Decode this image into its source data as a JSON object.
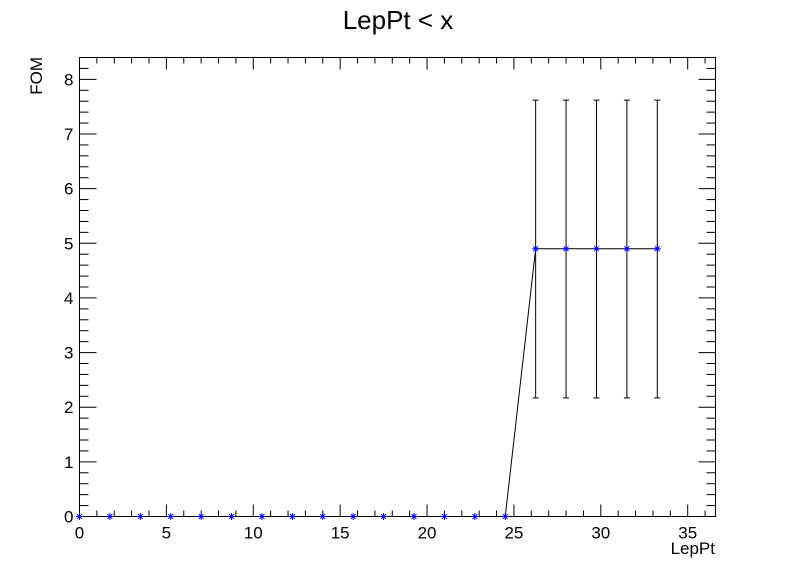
{
  "chart_data": {
    "type": "scatter",
    "title": "LepPt < x",
    "xlabel": "LepPt",
    "ylabel": "FOM",
    "xlim": [
      0,
      36.6
    ],
    "ylim": [
      0,
      8.4
    ],
    "x_ticks": [
      0,
      5,
      10,
      15,
      20,
      25,
      30,
      35
    ],
    "y_ticks": [
      0,
      1,
      2,
      3,
      4,
      5,
      6,
      7,
      8
    ],
    "grid": false,
    "legend": "none",
    "series": [
      {
        "marker": "star",
        "marker_color": "#0000ff",
        "line_color": "#000000",
        "points": [
          {
            "x": 0.0,
            "y": 0
          },
          {
            "x": 1.75,
            "y": 0
          },
          {
            "x": 3.5,
            "y": 0
          },
          {
            "x": 5.25,
            "y": 0
          },
          {
            "x": 7.0,
            "y": 0
          },
          {
            "x": 8.75,
            "y": 0
          },
          {
            "x": 10.5,
            "y": 0
          },
          {
            "x": 12.25,
            "y": 0
          },
          {
            "x": 14.0,
            "y": 0
          },
          {
            "x": 15.75,
            "y": 0
          },
          {
            "x": 17.5,
            "y": 0
          },
          {
            "x": 19.25,
            "y": 0
          },
          {
            "x": 21.0,
            "y": 0
          },
          {
            "x": 22.75,
            "y": 0
          },
          {
            "x": 24.5,
            "y": 0
          },
          {
            "x": 26.25,
            "y": 4.9,
            "yerr_low": 2.17,
            "yerr_high": 7.62
          },
          {
            "x": 28.0,
            "y": 4.9,
            "yerr_low": 2.17,
            "yerr_high": 7.62
          },
          {
            "x": 29.75,
            "y": 4.9,
            "yerr_low": 2.17,
            "yerr_high": 7.62
          },
          {
            "x": 31.5,
            "y": 4.9,
            "yerr_low": 2.17,
            "yerr_high": 7.62
          },
          {
            "x": 33.25,
            "y": 4.9,
            "yerr_low": 2.17,
            "yerr_high": 7.62
          }
        ]
      }
    ]
  }
}
